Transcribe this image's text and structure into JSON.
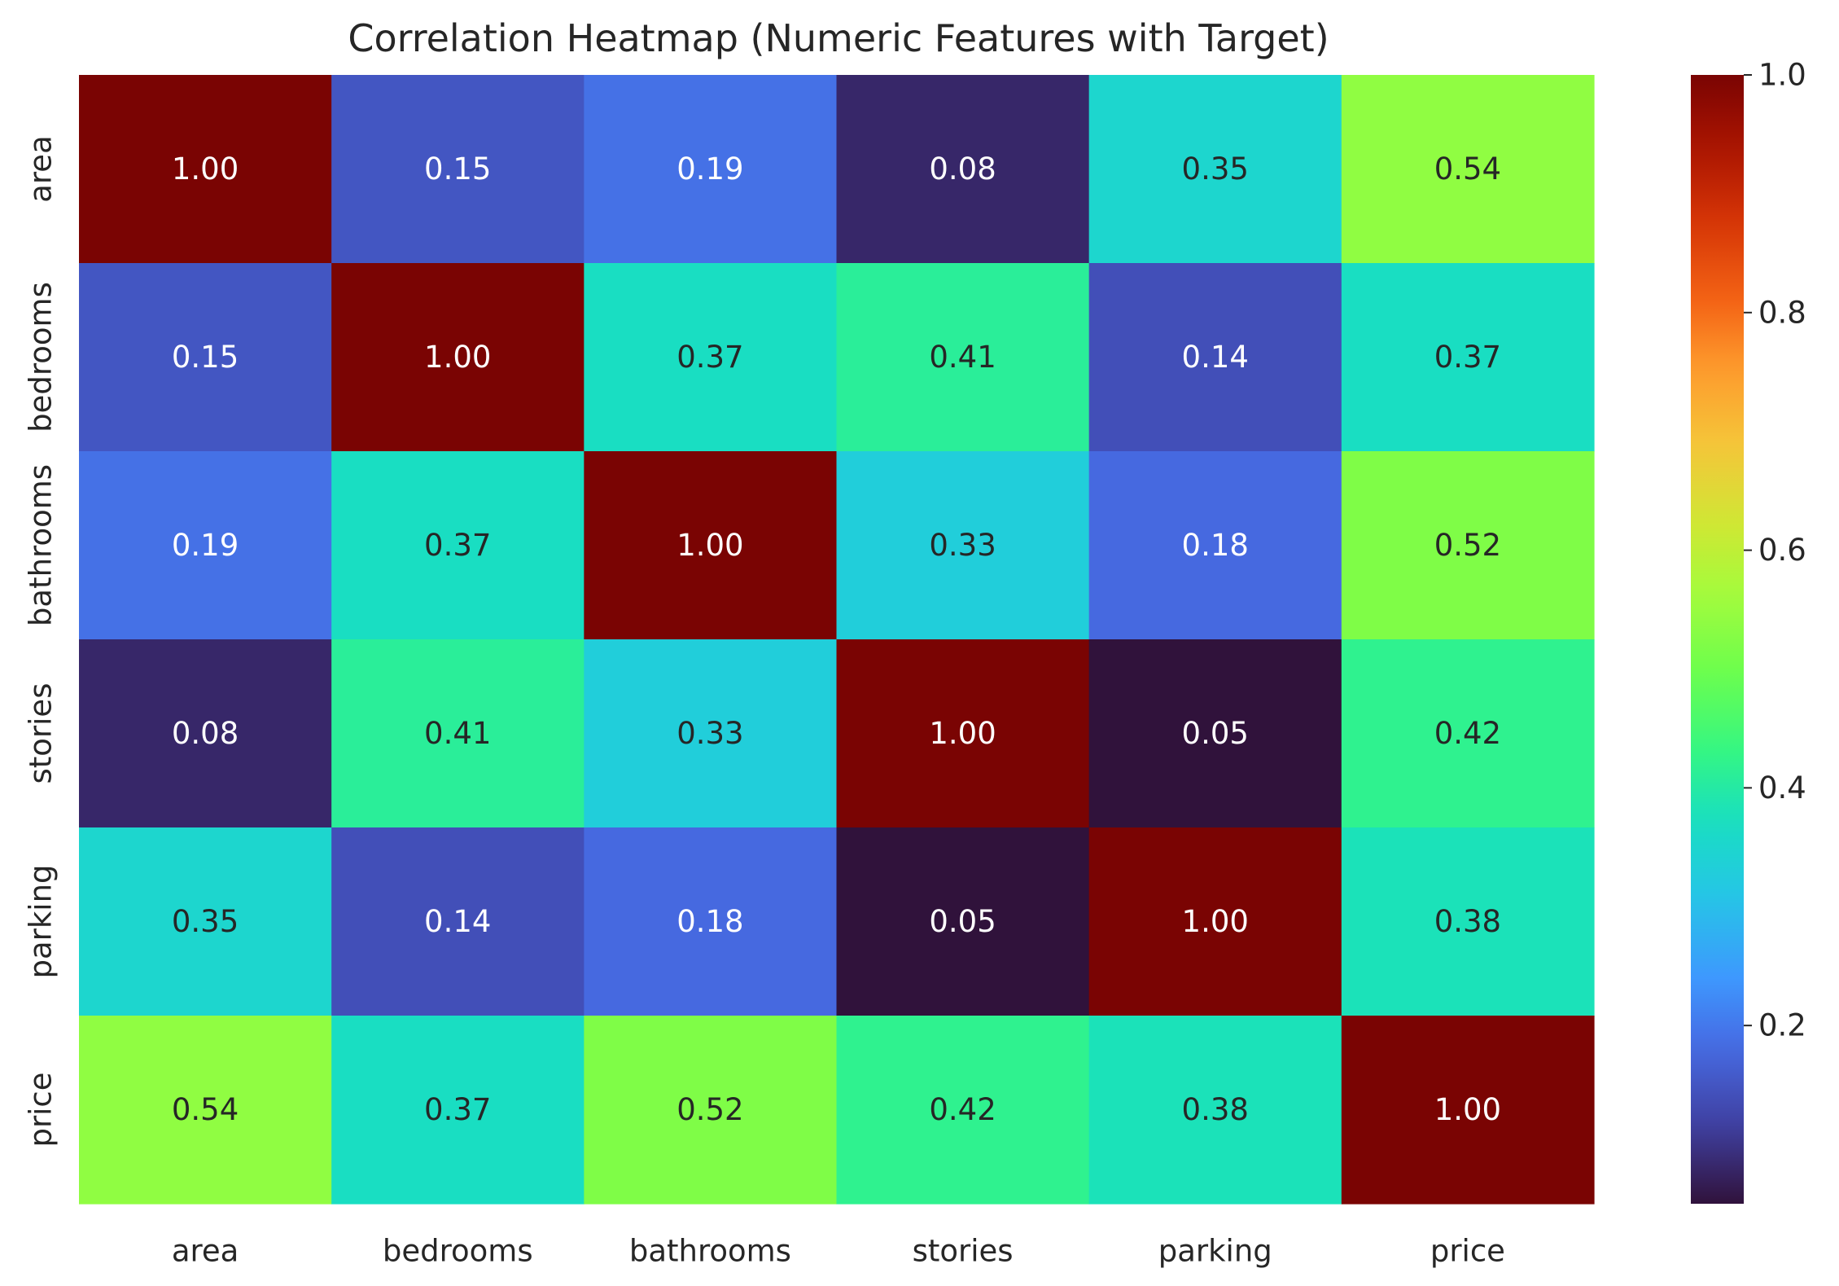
{
  "chart_data": {
    "type": "heatmap",
    "title": "Correlation Heatmap (Numeric Features with Target)",
    "xlabel": "",
    "ylabel": "",
    "x_categories": [
      "area",
      "bedrooms",
      "bathrooms",
      "stories",
      "parking",
      "price"
    ],
    "y_categories": [
      "area",
      "bedrooms",
      "bathrooms",
      "stories",
      "parking",
      "price"
    ],
    "values": [
      [
        1.0,
        0.15,
        0.19,
        0.08,
        0.35,
        0.54
      ],
      [
        0.15,
        1.0,
        0.37,
        0.41,
        0.14,
        0.37
      ],
      [
        0.19,
        0.37,
        1.0,
        0.33,
        0.18,
        0.52
      ],
      [
        0.08,
        0.41,
        0.33,
        1.0,
        0.05,
        0.42
      ],
      [
        0.35,
        0.14,
        0.18,
        0.05,
        1.0,
        0.38
      ],
      [
        0.54,
        0.37,
        0.52,
        0.42,
        0.38,
        1.0
      ]
    ],
    "value_format": "0.00",
    "colormap": "turbo",
    "colorbar": {
      "vmin": 0.05,
      "vmax": 1.0,
      "ticks": [
        0.2,
        0.4,
        0.6,
        0.8,
        1.0
      ],
      "tick_labels": [
        "0.2",
        "0.4",
        "0.6",
        "0.8",
        "1.0"
      ],
      "placement": "right"
    },
    "grid": false,
    "colors": {
      "text_dark": "#262626",
      "text_light": "#ffffff"
    }
  }
}
